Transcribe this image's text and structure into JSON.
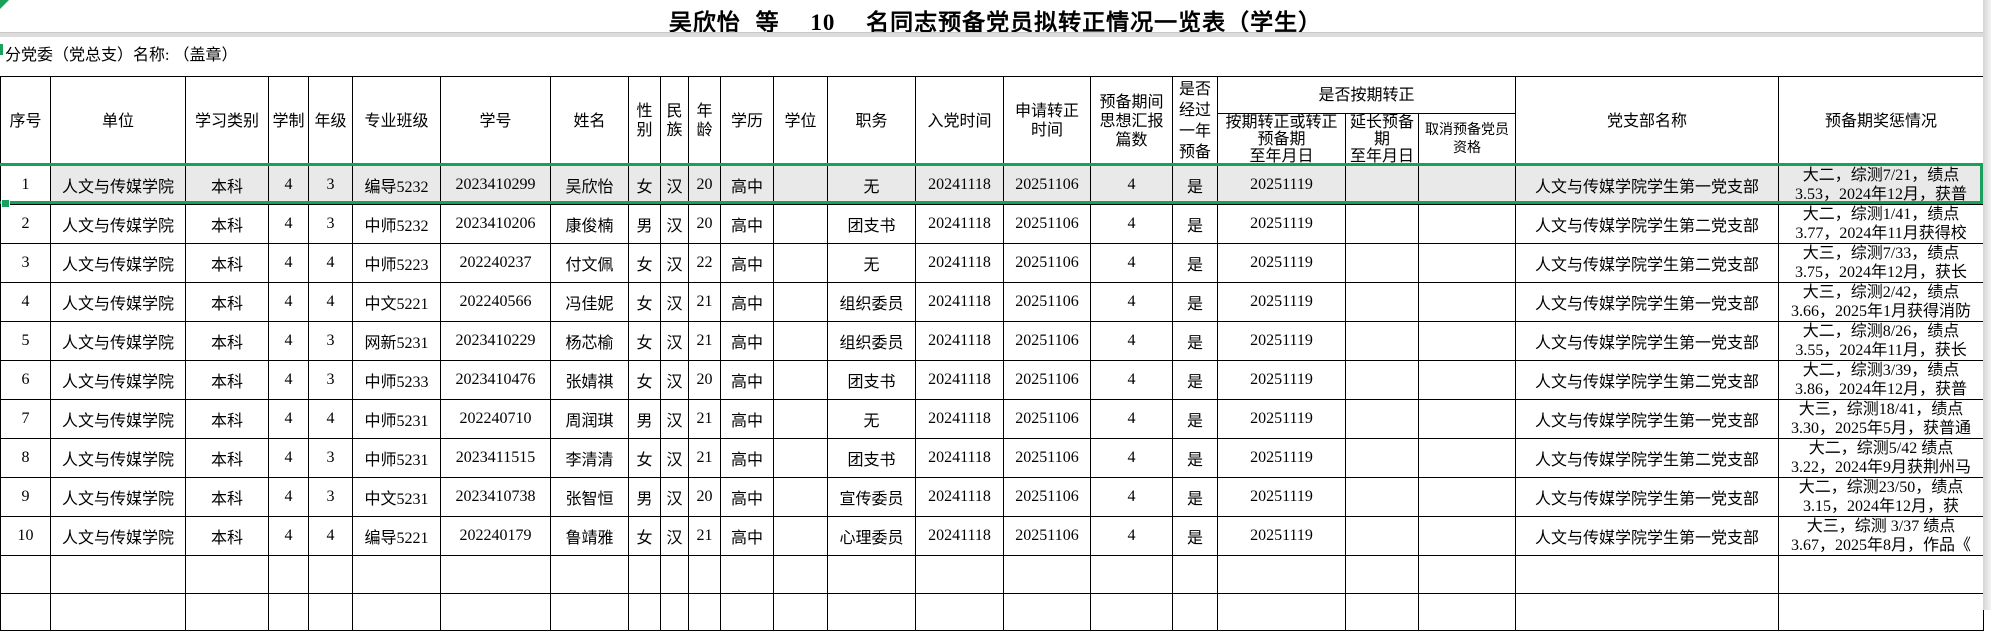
{
  "title": {
    "name": "吴欣怡",
    "etc": "等",
    "count": "10",
    "suffix": "名同志预备党员拟转正情况一览表（学生）"
  },
  "subtitle": "分党委（党总支）名称: （盖章）",
  "headers": {
    "seq": "序号",
    "unit": "单位",
    "category": "学习类别",
    "years": "学制",
    "grade": "年级",
    "class_name": "专业班级",
    "student_id": "学号",
    "name": "姓名",
    "gender": "性\n别",
    "ethnicity": "民\n族",
    "age": "年\n龄",
    "education": "学历",
    "degree": "学位",
    "position": "职务",
    "join_date": "入党时间",
    "apply_date": "申请转正\n时间",
    "reports": "预备期间\n思想汇报\n篇数",
    "one_year": "是否\n经过\n一年\n预备",
    "on_time_group": "是否按期转正",
    "on_time": "按期转正或转正预备期\n至年月日",
    "extend": "延长预备\n期\n至年月日",
    "cancel": "取消预备党员\n资格",
    "branch": "党支部名称",
    "remark": "预备期奖惩情况"
  },
  "rows": [
    {
      "seq": "1",
      "unit": "人文与传媒学院",
      "category": "本科",
      "years": "4",
      "grade": "3",
      "class_name": "编导5232",
      "student_id": "2023410299",
      "name": "吴欣怡",
      "gender": "女",
      "ethnicity": "汉",
      "age": "20",
      "education": "高中",
      "degree": "",
      "position": "无",
      "join_date": "20241118",
      "apply_date": "20251106",
      "reports": "4",
      "one_year": "是",
      "on_time": "20251119",
      "extend": "",
      "cancel": "",
      "branch": "人文与传媒学院学生第一党支部",
      "remark1": "大二，综测7/21，绩点",
      "remark2": "3.53，2024年12月，获普"
    },
    {
      "seq": "2",
      "unit": "人文与传媒学院",
      "category": "本科",
      "years": "4",
      "grade": "3",
      "class_name": "中师5232",
      "student_id": "2023410206",
      "name": "康俊楠",
      "gender": "男",
      "ethnicity": "汉",
      "age": "20",
      "education": "高中",
      "degree": "",
      "position": "团支书",
      "join_date": "20241118",
      "apply_date": "20251106",
      "reports": "4",
      "one_year": "是",
      "on_time": "20251119",
      "extend": "",
      "cancel": "",
      "branch": "人文与传媒学院学生第二党支部",
      "remark1": "大二，综测1/41，绩点",
      "remark2": "3.77，2024年11月获得校"
    },
    {
      "seq": "3",
      "unit": "人文与传媒学院",
      "category": "本科",
      "years": "4",
      "grade": "4",
      "class_name": "中师5223",
      "student_id": "202240237",
      "name": "付文佩",
      "gender": "女",
      "ethnicity": "汉",
      "age": "22",
      "education": "高中",
      "degree": "",
      "position": "无",
      "join_date": "20241118",
      "apply_date": "20251106",
      "reports": "4",
      "one_year": "是",
      "on_time": "20251119",
      "extend": "",
      "cancel": "",
      "branch": "人文与传媒学院学生第二党支部",
      "remark1": "大三，综测7/33，绩点",
      "remark2": "3.75，2024年12月，获长"
    },
    {
      "seq": "4",
      "unit": "人文与传媒学院",
      "category": "本科",
      "years": "4",
      "grade": "4",
      "class_name": "中文5221",
      "student_id": "202240566",
      "name": "冯佳妮",
      "gender": "女",
      "ethnicity": "汉",
      "age": "21",
      "education": "高中",
      "degree": "",
      "position": "组织委员",
      "join_date": "20241118",
      "apply_date": "20251106",
      "reports": "4",
      "one_year": "是",
      "on_time": "20251119",
      "extend": "",
      "cancel": "",
      "branch": "人文与传媒学院学生第一党支部",
      "remark1": "大三，综测2/42，绩点",
      "remark2": "3.66，2025年1月获得消防"
    },
    {
      "seq": "5",
      "unit": "人文与传媒学院",
      "category": "本科",
      "years": "4",
      "grade": "3",
      "class_name": "网新5231",
      "student_id": "2023410229",
      "name": "杨芯榆",
      "gender": "女",
      "ethnicity": "汉",
      "age": "21",
      "education": "高中",
      "degree": "",
      "position": "组织委员",
      "join_date": "20241118",
      "apply_date": "20251106",
      "reports": "4",
      "one_year": "是",
      "on_time": "20251119",
      "extend": "",
      "cancel": "",
      "branch": "人文与传媒学院学生第一党支部",
      "remark1": "大二，综测8/26，绩点",
      "remark2": "3.55，2024年11月，获长"
    },
    {
      "seq": "6",
      "unit": "人文与传媒学院",
      "category": "本科",
      "years": "4",
      "grade": "3",
      "class_name": "中师5233",
      "student_id": "2023410476",
      "name": "张婧祺",
      "gender": "女",
      "ethnicity": "汉",
      "age": "20",
      "education": "高中",
      "degree": "",
      "position": "团支书",
      "join_date": "20241118",
      "apply_date": "20251106",
      "reports": "4",
      "one_year": "是",
      "on_time": "20251119",
      "extend": "",
      "cancel": "",
      "branch": "人文与传媒学院学生第二党支部",
      "remark1": "大二，综测3/39，绩点",
      "remark2": "3.86，2024年12月，获普"
    },
    {
      "seq": "7",
      "unit": "人文与传媒学院",
      "category": "本科",
      "years": "4",
      "grade": "4",
      "class_name": "中师5231",
      "student_id": "202240710",
      "name": "周润琪",
      "gender": "男",
      "ethnicity": "汉",
      "age": "21",
      "education": "高中",
      "degree": "",
      "position": "无",
      "join_date": "20241118",
      "apply_date": "20251106",
      "reports": "4",
      "one_year": "是",
      "on_time": "20251119",
      "extend": "",
      "cancel": "",
      "branch": "人文与传媒学院学生第一党支部",
      "remark1": "大三，综测18/41，绩点",
      "remark2": "3.30，2025年5月，获普通"
    },
    {
      "seq": "8",
      "unit": "人文与传媒学院",
      "category": "本科",
      "years": "4",
      "grade": "3",
      "class_name": "中师5231",
      "student_id": "2023411515",
      "name": "李清清",
      "gender": "女",
      "ethnicity": "汉",
      "age": "21",
      "education": "高中",
      "degree": "",
      "position": "团支书",
      "join_date": "20241118",
      "apply_date": "20251106",
      "reports": "4",
      "one_year": "是",
      "on_time": "20251119",
      "extend": "",
      "cancel": "",
      "branch": "人文与传媒学院学生第二党支部",
      "remark1": "大二，综测5/42 绩点",
      "remark2": "3.22，2024年9月获荆州马"
    },
    {
      "seq": "9",
      "unit": "人文与传媒学院",
      "category": "本科",
      "years": "4",
      "grade": "3",
      "class_name": "中文5231",
      "student_id": "2023410738",
      "name": "张智恒",
      "gender": "男",
      "ethnicity": "汉",
      "age": "20",
      "education": "高中",
      "degree": "",
      "position": "宣传委员",
      "join_date": "20241118",
      "apply_date": "20251106",
      "reports": "4",
      "one_year": "是",
      "on_time": "20251119",
      "extend": "",
      "cancel": "",
      "branch": "人文与传媒学院学生第一党支部",
      "remark1": "大二，综测23/50，绩点",
      "remark2": "3.15，2024年12月，获"
    },
    {
      "seq": "10",
      "unit": "人文与传媒学院",
      "category": "本科",
      "years": "4",
      "grade": "4",
      "class_name": "编导5221",
      "student_id": "202240179",
      "name": "鲁靖雅",
      "gender": "女",
      "ethnicity": "汉",
      "age": "21",
      "education": "高中",
      "degree": "",
      "position": "心理委员",
      "join_date": "20241118",
      "apply_date": "20251106",
      "reports": "4",
      "one_year": "是",
      "on_time": "20251119",
      "extend": "",
      "cancel": "",
      "branch": "人文与传媒学院学生第一党支部",
      "remark1": "大三，综测 3/37 绩点",
      "remark2": "3.67，2025年8月，作品《"
    }
  ],
  "empty_row_count": 2,
  "selection": {
    "selected_row_index": 0,
    "active_cell": "seq"
  },
  "colors": {
    "accent_green": "#18A05C",
    "selected_fill": "#E9E9E9",
    "date_red": "#FF0000",
    "grid_black": "#000000"
  }
}
